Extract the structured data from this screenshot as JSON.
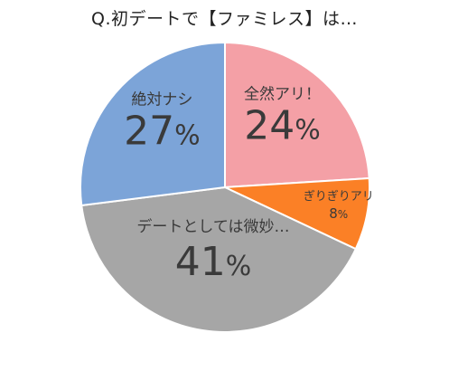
{
  "chart_data": {
    "type": "pie",
    "title": "Q.初デートで【ファミレス】は…",
    "slices": [
      {
        "label": "全然アリ！",
        "value": 24,
        "value_text": "24",
        "unit": "%",
        "color": "#f4a0a6"
      },
      {
        "label": "ぎりぎりアリ",
        "value": 8,
        "value_text": "8",
        "unit": "%",
        "color": "#fb8026"
      },
      {
        "label": "デートとしては微妙…",
        "value": 41,
        "value_text": "41",
        "unit": "%",
        "color": "#a6a6a6"
      },
      {
        "label": "絶対ナシ",
        "value": 27,
        "value_text": "27",
        "unit": "%",
        "color": "#7ca4d8"
      }
    ],
    "start_angle_deg": 0,
    "direction": "clockwise",
    "legend": "none",
    "slice_border_color": "#ffffff"
  }
}
